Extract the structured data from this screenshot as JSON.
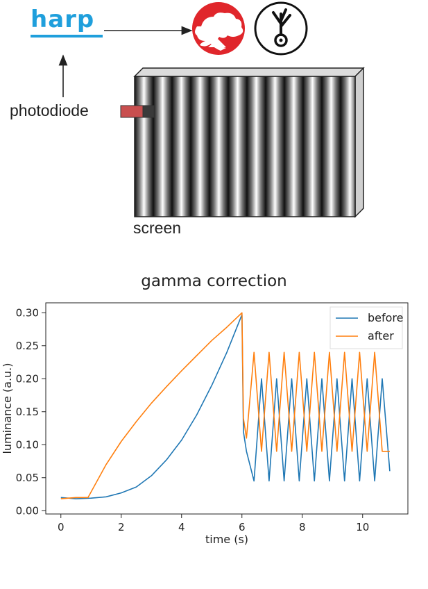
{
  "diagram": {
    "logo_text": "harp",
    "photodiode_label": "photodiode",
    "screen_label": "screen",
    "accent_blue": "#1f9fdc",
    "bonsai_red": "#e0262b",
    "photodiode_color": "#c94f4f",
    "icons": [
      "bonsai-logo-icon",
      "bonvision-logo-icon"
    ],
    "grating_cycles": 12
  },
  "chart_data": {
    "type": "line",
    "title": "gamma correction",
    "xlabel": "time (s)",
    "ylabel": "luminance (a.u.)",
    "xlim": [
      -0.5,
      11.5
    ],
    "ylim": [
      -0.005,
      0.315
    ],
    "xticks": [
      0,
      2,
      4,
      6,
      8,
      10
    ],
    "yticks": [
      0.0,
      0.05,
      0.1,
      0.15,
      0.2,
      0.25,
      0.3
    ],
    "ytick_labels": [
      "0.00",
      "0.05",
      "0.10",
      "0.15",
      "0.20",
      "0.25",
      "0.30"
    ],
    "grid": false,
    "legend": "top-right",
    "series": [
      {
        "name": "before",
        "color": "#1f77b4",
        "x": [
          0.0,
          0.5,
          1.0,
          1.5,
          2.0,
          2.5,
          3.0,
          3.5,
          4.0,
          4.5,
          5.0,
          5.5,
          6.0,
          6.05,
          6.15,
          6.4,
          6.65,
          6.9,
          7.15,
          7.4,
          7.65,
          7.9,
          8.15,
          8.4,
          8.65,
          8.9,
          9.15,
          9.4,
          9.65,
          9.9,
          10.15,
          10.4,
          10.65,
          10.9
        ],
        "y": [
          0.02,
          0.018,
          0.019,
          0.021,
          0.027,
          0.036,
          0.053,
          0.077,
          0.107,
          0.145,
          0.19,
          0.24,
          0.297,
          0.12,
          0.09,
          0.045,
          0.2,
          0.045,
          0.2,
          0.045,
          0.2,
          0.045,
          0.2,
          0.045,
          0.2,
          0.045,
          0.2,
          0.045,
          0.2,
          0.045,
          0.2,
          0.045,
          0.2,
          0.06
        ]
      },
      {
        "name": "after",
        "color": "#ff7f0e",
        "x": [
          0.0,
          0.5,
          0.9,
          1.5,
          2.0,
          2.5,
          3.0,
          3.5,
          4.0,
          4.5,
          5.0,
          5.5,
          6.0,
          6.05,
          6.15,
          6.4,
          6.65,
          6.9,
          7.15,
          7.4,
          7.65,
          7.9,
          8.15,
          8.4,
          8.65,
          8.9,
          9.15,
          9.4,
          9.65,
          9.9,
          10.15,
          10.4,
          10.65,
          10.9
        ],
        "y": [
          0.018,
          0.02,
          0.02,
          0.07,
          0.105,
          0.135,
          0.163,
          0.188,
          0.212,
          0.235,
          0.258,
          0.278,
          0.3,
          0.14,
          0.11,
          0.24,
          0.09,
          0.24,
          0.09,
          0.24,
          0.09,
          0.24,
          0.09,
          0.24,
          0.09,
          0.24,
          0.09,
          0.24,
          0.09,
          0.24,
          0.09,
          0.24,
          0.09,
          0.09
        ]
      }
    ]
  }
}
